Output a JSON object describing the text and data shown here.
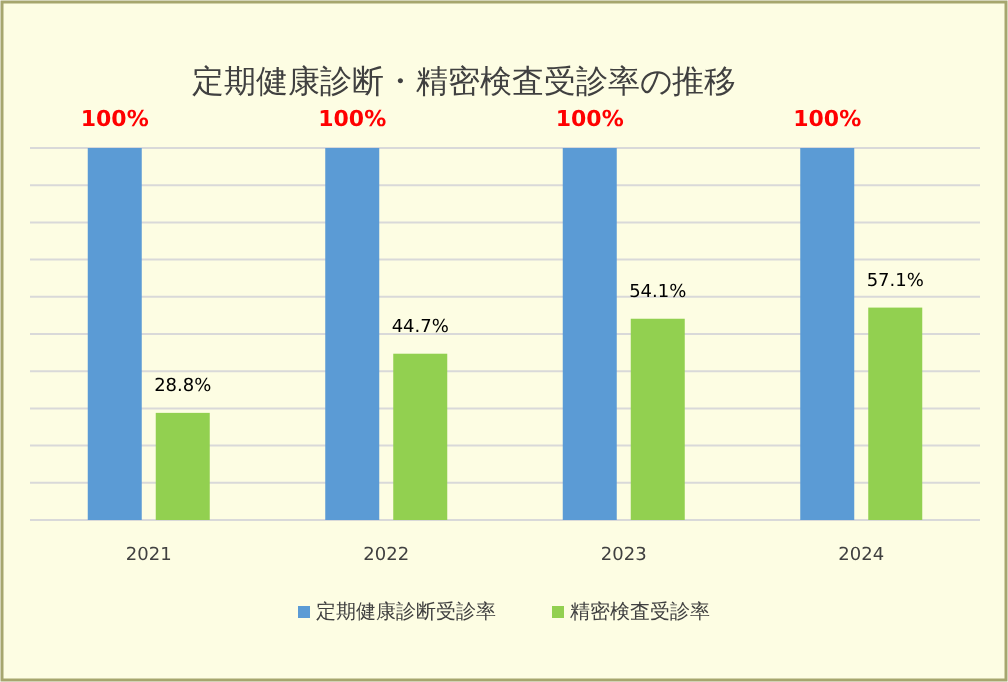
{
  "chart_data": {
    "type": "bar",
    "title": "定期健康診断・精密検査受診率の推移",
    "categories": [
      "2021",
      "2022",
      "2023",
      "2024"
    ],
    "series": [
      {
        "name": "定期健康診断受診率",
        "color": "#5b9bd5",
        "values": [
          100,
          100,
          100,
          100
        ],
        "value_labels": [
          "100%",
          "100%",
          "100%",
          "100%"
        ]
      },
      {
        "name": "精密検査受診率",
        "color": "#92d050",
        "values": [
          28.8,
          44.7,
          54.1,
          57.1
        ],
        "value_labels": [
          "28.8%",
          "44.7%",
          "54.1%",
          "57.1%"
        ]
      }
    ],
    "ylim": [
      0,
      100
    ],
    "yticks": [
      {
        "value": 0,
        "label": null
      },
      {
        "value": 10,
        "label": null
      },
      {
        "value": 20,
        "label": null
      },
      {
        "value": 30,
        "label": null
      },
      {
        "value": 40,
        "label": null
      },
      {
        "value": 50,
        "label": null
      },
      {
        "value": 60,
        "label": null
      },
      {
        "value": 70,
        "label": null
      },
      {
        "value": 80,
        "label": null
      },
      {
        "value": 90,
        "label": null
      },
      {
        "value": 100,
        "label": null
      }
    ],
    "tick_labels": "x",
    "grid": "y",
    "legend": "bottom"
  }
}
